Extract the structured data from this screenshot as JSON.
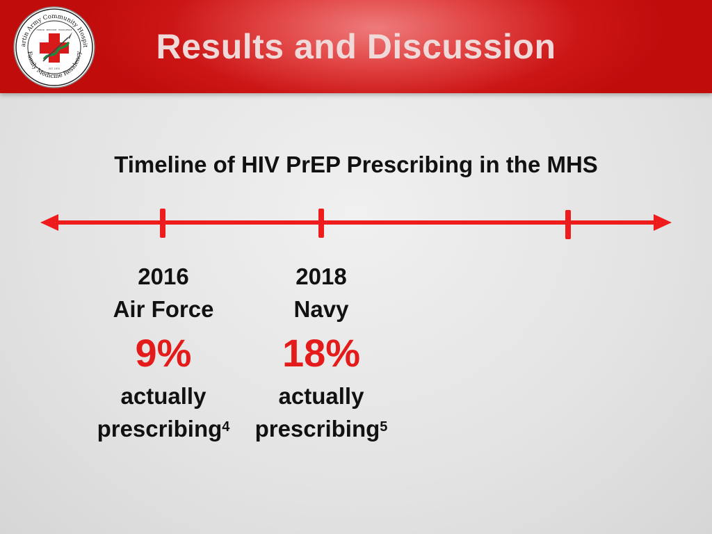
{
  "slide": {
    "title": "Results and Discussion",
    "subtitle": "Timeline of HIV PrEP Prescribing in the MHS"
  },
  "logo": {
    "text_top": "Martin Army Community Hospital",
    "text_bottom": "Family Medicine Residency",
    "motto": "HONOR · MEDICINE · EXCELLENCE",
    "established": "EST. 1970"
  },
  "timeline": {
    "events": [
      {
        "year": "2016",
        "service": "Air Force",
        "percent": "9%",
        "text1": "actually",
        "text2": "prescribing",
        "ref": "4"
      },
      {
        "year": "2018",
        "service": "Navy",
        "percent": "18%",
        "text1": "actually",
        "text2": "prescribing",
        "ref": "5"
      }
    ]
  },
  "colors": {
    "header_red": "#c10c0c",
    "timeline_red": "#ee1c1c",
    "percent_red": "#e41b1b",
    "title_text": "#efd9d9"
  }
}
